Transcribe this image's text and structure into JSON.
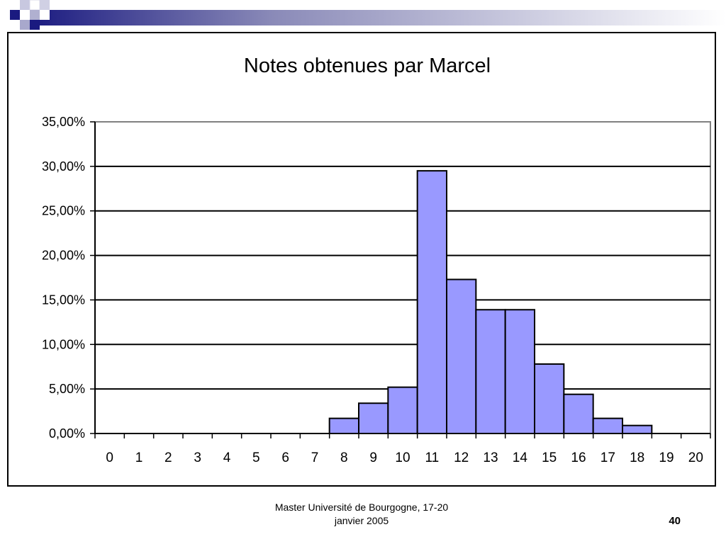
{
  "slide": {
    "footer_line1": "Master Université de Bourgogne, 17-20",
    "footer_line2": "janvier 2005",
    "page_number": "40",
    "accent_color": "#1a1a80"
  },
  "chart_data": {
    "type": "bar",
    "title": "Notes obtenues par Marcel",
    "xlabel": "",
    "ylabel": "",
    "categories": [
      "0",
      "1",
      "2",
      "3",
      "4",
      "5",
      "6",
      "7",
      "8",
      "9",
      "10",
      "11",
      "12",
      "13",
      "14",
      "15",
      "16",
      "17",
      "18",
      "19",
      "20"
    ],
    "values": [
      0,
      0,
      0,
      0,
      0,
      0,
      0,
      0,
      1.7,
      3.4,
      5.2,
      29.5,
      17.3,
      13.9,
      13.9,
      7.8,
      4.4,
      1.7,
      0.9,
      0,
      0
    ],
    "value_unit": "%",
    "ylim": [
      0,
      35
    ],
    "yticks": [
      0,
      5,
      10,
      15,
      20,
      25,
      30,
      35
    ],
    "ytick_labels": [
      "0,00%",
      "5,00%",
      "10,00%",
      "15,00%",
      "20,00%",
      "25,00%",
      "30,00%",
      "35,00%"
    ],
    "grid": true,
    "legend": "none",
    "bar_color": "#9999ff",
    "bar_edge_color": "#000000"
  }
}
